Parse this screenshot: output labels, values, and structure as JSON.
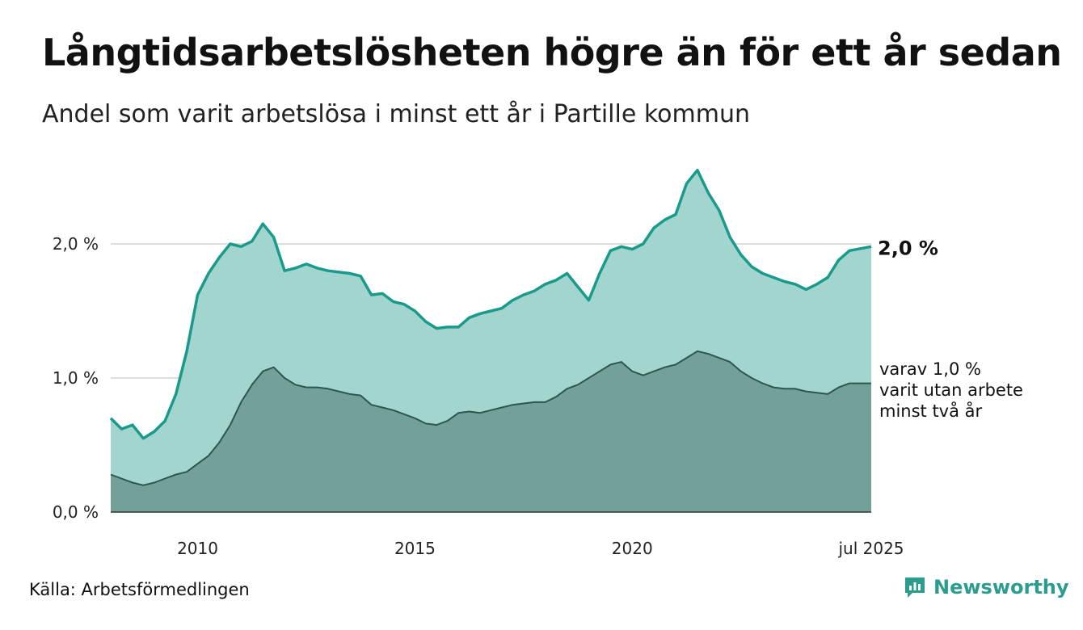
{
  "title": "Långtidsarbetslösheten högre än för ett år sedan",
  "subtitle": "Andel som varit arbetslösa i minst ett år i Partille kommun",
  "source": "Källa: Arbetsförmedlingen",
  "brand": "Newsworthy",
  "colors": {
    "series1_line": "#1a9a8a",
    "series1_fill": "#a3d5cf",
    "series2_line": "#2f5550",
    "series2_fill": "#73a19a",
    "grid": "#dddddd",
    "brand": "#2a9d8f"
  },
  "chart_data": {
    "type": "area",
    "title": "Långtidsarbetslösheten högre än för ett år sedan",
    "subtitle": "Andel som varit arbetslösa i minst ett år i Partille kommun",
    "x_start": "2008-01",
    "x_end": "2025-07",
    "x_ticks": [
      {
        "label": "2010",
        "x": 2010
      },
      {
        "label": "2015",
        "x": 2015
      },
      {
        "label": "2020",
        "x": 2020
      },
      {
        "label": "jul 2025",
        "x": 2025.5
      }
    ],
    "y_ticks": [
      {
        "label": "0,0 %",
        "value": 0.0
      },
      {
        "label": "1,0 %",
        "value": 1.0
      },
      {
        "label": "2,0 %",
        "value": 2.0
      }
    ],
    "ylim": [
      0,
      2.6
    ],
    "grid": true,
    "series": [
      {
        "label": "2,0 %",
        "points": [
          [
            2008.0,
            0.7
          ],
          [
            2008.25,
            0.62
          ],
          [
            2008.5,
            0.65
          ],
          [
            2008.75,
            0.55
          ],
          [
            2009.0,
            0.6
          ],
          [
            2009.25,
            0.68
          ],
          [
            2009.5,
            0.88
          ],
          [
            2009.75,
            1.2
          ],
          [
            2010.0,
            1.62
          ],
          [
            2010.25,
            1.78
          ],
          [
            2010.5,
            1.9
          ],
          [
            2010.75,
            2.0
          ],
          [
            2011.0,
            1.98
          ],
          [
            2011.25,
            2.02
          ],
          [
            2011.5,
            2.15
          ],
          [
            2011.75,
            2.05
          ],
          [
            2012.0,
            1.8
          ],
          [
            2012.25,
            1.82
          ],
          [
            2012.5,
            1.85
          ],
          [
            2012.75,
            1.82
          ],
          [
            2013.0,
            1.8
          ],
          [
            2013.25,
            1.79
          ],
          [
            2013.5,
            1.78
          ],
          [
            2013.75,
            1.76
          ],
          [
            2014.0,
            1.62
          ],
          [
            2014.25,
            1.63
          ],
          [
            2014.5,
            1.57
          ],
          [
            2014.75,
            1.55
          ],
          [
            2015.0,
            1.5
          ],
          [
            2015.25,
            1.42
          ],
          [
            2015.5,
            1.37
          ],
          [
            2015.75,
            1.38
          ],
          [
            2016.0,
            1.38
          ],
          [
            2016.25,
            1.45
          ],
          [
            2016.5,
            1.48
          ],
          [
            2016.75,
            1.5
          ],
          [
            2017.0,
            1.52
          ],
          [
            2017.25,
            1.58
          ],
          [
            2017.5,
            1.62
          ],
          [
            2017.75,
            1.65
          ],
          [
            2018.0,
            1.7
          ],
          [
            2018.25,
            1.73
          ],
          [
            2018.5,
            1.78
          ],
          [
            2018.75,
            1.68
          ],
          [
            2019.0,
            1.58
          ],
          [
            2019.25,
            1.78
          ],
          [
            2019.5,
            1.95
          ],
          [
            2019.75,
            1.98
          ],
          [
            2020.0,
            1.96
          ],
          [
            2020.25,
            2.0
          ],
          [
            2020.5,
            2.12
          ],
          [
            2020.75,
            2.18
          ],
          [
            2021.0,
            2.22
          ],
          [
            2021.25,
            2.45
          ],
          [
            2021.5,
            2.55
          ],
          [
            2021.75,
            2.38
          ],
          [
            2022.0,
            2.25
          ],
          [
            2022.25,
            2.05
          ],
          [
            2022.5,
            1.92
          ],
          [
            2022.75,
            1.83
          ],
          [
            2023.0,
            1.78
          ],
          [
            2023.25,
            1.75
          ],
          [
            2023.5,
            1.72
          ],
          [
            2023.75,
            1.7
          ],
          [
            2024.0,
            1.66
          ],
          [
            2024.25,
            1.7
          ],
          [
            2024.5,
            1.75
          ],
          [
            2024.75,
            1.88
          ],
          [
            2025.0,
            1.95
          ],
          [
            2025.5,
            1.98
          ]
        ]
      },
      {
        "label": "varav 1,0 % varit utan arbete minst två år",
        "label_lines": [
          "varav 1,0 %",
          "varit utan arbete",
          "minst två år"
        ],
        "points": [
          [
            2008.0,
            0.28
          ],
          [
            2008.25,
            0.25
          ],
          [
            2008.5,
            0.22
          ],
          [
            2008.75,
            0.2
          ],
          [
            2009.0,
            0.22
          ],
          [
            2009.25,
            0.25
          ],
          [
            2009.5,
            0.28
          ],
          [
            2009.75,
            0.3
          ],
          [
            2010.0,
            0.36
          ],
          [
            2010.25,
            0.42
          ],
          [
            2010.5,
            0.52
          ],
          [
            2010.75,
            0.65
          ],
          [
            2011.0,
            0.82
          ],
          [
            2011.25,
            0.95
          ],
          [
            2011.5,
            1.05
          ],
          [
            2011.75,
            1.08
          ],
          [
            2012.0,
            1.0
          ],
          [
            2012.25,
            0.95
          ],
          [
            2012.5,
            0.93
          ],
          [
            2012.75,
            0.93
          ],
          [
            2013.0,
            0.92
          ],
          [
            2013.25,
            0.9
          ],
          [
            2013.5,
            0.88
          ],
          [
            2013.75,
            0.87
          ],
          [
            2014.0,
            0.8
          ],
          [
            2014.25,
            0.78
          ],
          [
            2014.5,
            0.76
          ],
          [
            2014.75,
            0.73
          ],
          [
            2015.0,
            0.7
          ],
          [
            2015.25,
            0.66
          ],
          [
            2015.5,
            0.65
          ],
          [
            2015.75,
            0.68
          ],
          [
            2016.0,
            0.74
          ],
          [
            2016.25,
            0.75
          ],
          [
            2016.5,
            0.74
          ],
          [
            2016.75,
            0.76
          ],
          [
            2017.0,
            0.78
          ],
          [
            2017.25,
            0.8
          ],
          [
            2017.5,
            0.81
          ],
          [
            2017.75,
            0.82
          ],
          [
            2018.0,
            0.82
          ],
          [
            2018.25,
            0.86
          ],
          [
            2018.5,
            0.92
          ],
          [
            2018.75,
            0.95
          ],
          [
            2019.0,
            1.0
          ],
          [
            2019.25,
            1.05
          ],
          [
            2019.5,
            1.1
          ],
          [
            2019.75,
            1.12
          ],
          [
            2020.0,
            1.05
          ],
          [
            2020.25,
            1.02
          ],
          [
            2020.5,
            1.05
          ],
          [
            2020.75,
            1.08
          ],
          [
            2021.0,
            1.1
          ],
          [
            2021.25,
            1.15
          ],
          [
            2021.5,
            1.2
          ],
          [
            2021.75,
            1.18
          ],
          [
            2022.0,
            1.15
          ],
          [
            2022.25,
            1.12
          ],
          [
            2022.5,
            1.05
          ],
          [
            2022.75,
            1.0
          ],
          [
            2023.0,
            0.96
          ],
          [
            2023.25,
            0.93
          ],
          [
            2023.5,
            0.92
          ],
          [
            2023.75,
            0.92
          ],
          [
            2024.0,
            0.9
          ],
          [
            2024.25,
            0.89
          ],
          [
            2024.5,
            0.88
          ],
          [
            2024.75,
            0.93
          ],
          [
            2025.0,
            0.96
          ],
          [
            2025.5,
            0.96
          ]
        ]
      }
    ]
  }
}
